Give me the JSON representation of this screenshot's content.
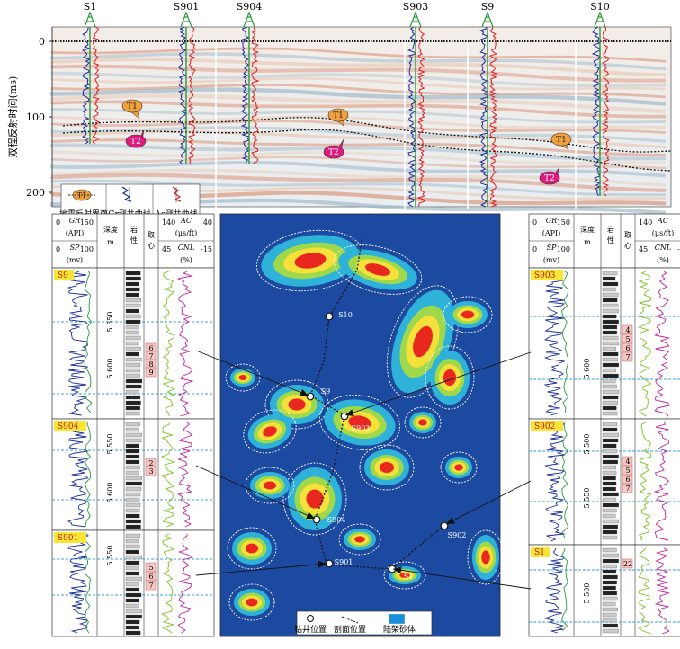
{
  "seismic": {
    "y_axis_label": "双程反射时间(ms)",
    "y_ticks": [
      "0",
      "100",
      "200"
    ],
    "wells": [
      "S1",
      "S901",
      "S904",
      "S903",
      "S9",
      "S10"
    ],
    "horizon_labels": [
      "T1",
      "T2"
    ],
    "legend": {
      "horizon": "地震反射界面",
      "gr": "Gr测井曲线",
      "ac": "Ac测井曲线"
    }
  },
  "panel_header": {
    "gr": "GR",
    "gr_left": "0",
    "gr_right": "150",
    "gr_unit": "(API)",
    "sp": "SP",
    "sp_left": "0",
    "sp_right": "100",
    "sp_unit": "(mv)",
    "depth": "深度",
    "depth_unit": "m",
    "lith": "岩",
    "lith2": "性",
    "core": "取",
    "core2": "心",
    "ac": "AC",
    "ac_left": "140",
    "ac_right": "40",
    "ac_unit": "(μs/ft)",
    "cnl": "CNL",
    "cnl_left": "45",
    "cnl_right": "-15",
    "cnl_unit": "(%)"
  },
  "panels": {
    "s9": {
      "name": "S9",
      "depths": [
        "5 550",
        "5 600"
      ],
      "cores": [
        "6",
        "7",
        "8",
        "9"
      ]
    },
    "s904": {
      "name": "S904",
      "depths": [
        "5 550",
        "5 600"
      ],
      "cores": [
        "2",
        "3"
      ]
    },
    "s901": {
      "name": "S901",
      "depths": [
        "5 550"
      ],
      "cores": [
        "5",
        "6",
        "7"
      ]
    },
    "s903": {
      "name": "S903",
      "depths": [
        "5 600"
      ],
      "cores": [
        "4",
        "5",
        "6",
        "7"
      ]
    },
    "s902": {
      "name": "S902",
      "depths": [
        "5 500",
        "5 550"
      ],
      "cores": [
        "4",
        "5",
        "6",
        "7"
      ]
    },
    "s1": {
      "name": "S1",
      "depths": [
        "5 500"
      ],
      "cores": [
        "22"
      ]
    }
  },
  "map": {
    "wells": [
      "S10",
      "S9",
      "S903",
      "S904",
      "S902",
      "S901",
      "S1"
    ],
    "legend": {
      "well": "钻井位置",
      "section": "剖面位置",
      "sand": "陆架砂体"
    }
  }
}
